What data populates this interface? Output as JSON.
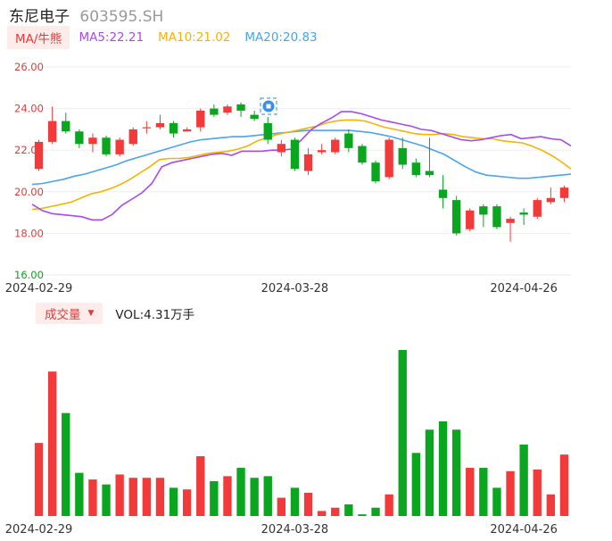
{
  "header": {
    "name": "东尼电子",
    "code": "603595.SH"
  },
  "ma_bar": {
    "button": "MA/牛熊",
    "ma5": "MA5:22.21",
    "ma10": "MA10:21.02",
    "ma20": "MA20:20.83"
  },
  "vol_bar": {
    "button": "成交量",
    "caret": "▼",
    "value": "VOL:4.31万手"
  },
  "colors": {
    "up": "#f23a3a",
    "down": "#0aa61f",
    "ma5": "#a64bf0",
    "ma10": "#f5b400",
    "ma20": "#4aa3f0",
    "axis_text": "#e03c3c"
  },
  "chart_data": {
    "type": "candlestick",
    "y_ticks": [
      "26.00",
      "24.00",
      "22.00",
      "20.00",
      "18.00",
      "16.00"
    ],
    "ylim": [
      16,
      26
    ],
    "x_labels": [
      "2024-02-29",
      "2024-03-28",
      "2024-04-26"
    ],
    "x_label_index": [
      0,
      19,
      36
    ],
    "candles": [
      {
        "o": 21.1,
        "c": 22.4,
        "h": 22.5,
        "l": 21.0
      },
      {
        "o": 22.4,
        "c": 23.4,
        "h": 24.1,
        "l": 22.3
      },
      {
        "o": 23.4,
        "c": 22.9,
        "h": 23.8,
        "l": 22.8
      },
      {
        "o": 22.9,
        "c": 22.3,
        "h": 23.0,
        "l": 22.1
      },
      {
        "o": 22.3,
        "c": 22.6,
        "h": 22.8,
        "l": 21.9
      },
      {
        "o": 22.6,
        "c": 21.8,
        "h": 22.7,
        "l": 21.7
      },
      {
        "o": 21.8,
        "c": 22.5,
        "h": 22.6,
        "l": 21.7
      },
      {
        "o": 22.3,
        "c": 23.0,
        "h": 23.1,
        "l": 22.2
      },
      {
        "o": 23.1,
        "c": 23.1,
        "h": 23.4,
        "l": 22.8
      },
      {
        "o": 23.1,
        "c": 23.3,
        "h": 23.7,
        "l": 23.0
      },
      {
        "o": 23.3,
        "c": 22.8,
        "h": 23.4,
        "l": 22.6
      },
      {
        "o": 22.9,
        "c": 23.0,
        "h": 23.1,
        "l": 22.9
      },
      {
        "o": 23.1,
        "c": 23.9,
        "h": 24.0,
        "l": 22.9
      },
      {
        "o": 24.0,
        "c": 23.7,
        "h": 24.2,
        "l": 23.6
      },
      {
        "o": 23.8,
        "c": 24.1,
        "h": 24.2,
        "l": 23.7
      },
      {
        "o": 24.2,
        "c": 23.9,
        "h": 24.3,
        "l": 23.6
      },
      {
        "o": 23.7,
        "c": 23.5,
        "h": 23.9,
        "l": 23.4
      },
      {
        "o": 23.3,
        "c": 22.5,
        "h": 23.6,
        "l": 22.3
      },
      {
        "o": 21.9,
        "c": 22.3,
        "h": 22.5,
        "l": 21.7
      },
      {
        "o": 22.5,
        "c": 21.1,
        "h": 22.6,
        "l": 21.0
      },
      {
        "o": 21.0,
        "c": 21.8,
        "h": 22.1,
        "l": 20.8
      },
      {
        "o": 21.9,
        "c": 22.0,
        "h": 22.3,
        "l": 21.8
      },
      {
        "o": 21.9,
        "c": 22.5,
        "h": 22.6,
        "l": 21.8
      },
      {
        "o": 22.8,
        "c": 22.1,
        "h": 23.0,
        "l": 21.9
      },
      {
        "o": 22.2,
        "c": 21.4,
        "h": 22.3,
        "l": 21.3
      },
      {
        "o": 21.4,
        "c": 20.5,
        "h": 21.5,
        "l": 20.4
      },
      {
        "o": 20.7,
        "c": 22.5,
        "h": 22.6,
        "l": 20.6
      },
      {
        "o": 22.1,
        "c": 21.3,
        "h": 22.6,
        "l": 21.1
      },
      {
        "o": 21.4,
        "c": 20.8,
        "h": 21.6,
        "l": 20.7
      },
      {
        "o": 21.0,
        "c": 20.8,
        "h": 22.6,
        "l": 20.7
      },
      {
        "o": 20.1,
        "c": 19.7,
        "h": 20.8,
        "l": 19.2
      },
      {
        "o": 19.6,
        "c": 18.0,
        "h": 19.8,
        "l": 17.9
      },
      {
        "o": 18.2,
        "c": 19.1,
        "h": 19.2,
        "l": 18.1
      },
      {
        "o": 19.3,
        "c": 18.9,
        "h": 19.4,
        "l": 18.3
      },
      {
        "o": 19.3,
        "c": 18.3,
        "h": 19.4,
        "l": 18.2
      },
      {
        "o": 18.5,
        "c": 18.7,
        "h": 18.8,
        "l": 17.6
      },
      {
        "o": 19.0,
        "c": 18.9,
        "h": 19.2,
        "l": 18.4
      },
      {
        "o": 18.8,
        "c": 19.6,
        "h": 19.7,
        "l": 18.7
      },
      {
        "o": 19.5,
        "c": 19.7,
        "h": 20.2,
        "l": 19.4
      },
      {
        "o": 19.7,
        "c": 20.2,
        "h": 20.3,
        "l": 19.5
      }
    ],
    "ma5": [
      19.4,
      19.1,
      18.95,
      18.9,
      18.85,
      18.8,
      18.65,
      18.65,
      18.9,
      19.35,
      19.65,
      19.95,
      20.4,
      21.2,
      21.4,
      21.5,
      21.6,
      21.7,
      21.8,
      21.85,
      21.75,
      21.95,
      21.95,
      21.95,
      22.0,
      22.0,
      22.05,
      22.5,
      23.0,
      23.3,
      23.55,
      23.85,
      23.85,
      23.75,
      23.6,
      23.45,
      23.35,
      23.25,
      23.15,
      23.0,
      22.95,
      22.8,
      22.65,
      22.5,
      22.45,
      22.5,
      22.6,
      22.7,
      22.75,
      22.55,
      22.6,
      22.65,
      22.55,
      22.5,
      22.2
    ],
    "ma10": [
      19.15,
      19.2,
      19.3,
      19.4,
      19.5,
      19.7,
      19.9,
      20.0,
      20.15,
      20.35,
      20.6,
      20.9,
      21.2,
      21.55,
      21.6,
      21.6,
      21.65,
      21.75,
      21.85,
      21.9,
      21.95,
      22.05,
      22.2,
      22.45,
      22.6,
      22.75,
      22.85,
      22.95,
      23.05,
      23.15,
      23.3,
      23.4,
      23.45,
      23.45,
      23.4,
      23.25,
      23.1,
      23.0,
      22.9,
      22.8,
      22.75,
      22.75,
      22.8,
      22.75,
      22.65,
      22.6,
      22.55,
      22.55,
      22.45,
      22.4,
      22.35,
      22.2,
      22.0,
      21.75,
      21.45,
      21.1
    ],
    "ma20": [
      20.35,
      20.4,
      20.5,
      20.6,
      20.75,
      20.85,
      21.0,
      21.15,
      21.3,
      21.5,
      21.65,
      21.8,
      21.95,
      22.1,
      22.25,
      22.4,
      22.5,
      22.55,
      22.6,
      22.65,
      22.65,
      22.7,
      22.75,
      22.8,
      22.85,
      22.9,
      22.95,
      22.95,
      22.95,
      22.95,
      22.95,
      22.9,
      22.85,
      22.75,
      22.65,
      22.5,
      22.35,
      22.2,
      22.0,
      21.8,
      21.5,
      21.2,
      20.95,
      20.8,
      20.75,
      20.7,
      20.65,
      20.65,
      20.7,
      20.75,
      20.8,
      20.85
    ],
    "volume": [
      44,
      87,
      62,
      26,
      22,
      19,
      25,
      23,
      23,
      23,
      17,
      16,
      36,
      21,
      24,
      29,
      23,
      24,
      11,
      17,
      14,
      3,
      5,
      7,
      1,
      5,
      13,
      100,
      38,
      52,
      57,
      52,
      29,
      29,
      17,
      27,
      43,
      28,
      13,
      37
    ],
    "volume_max": 100
  }
}
